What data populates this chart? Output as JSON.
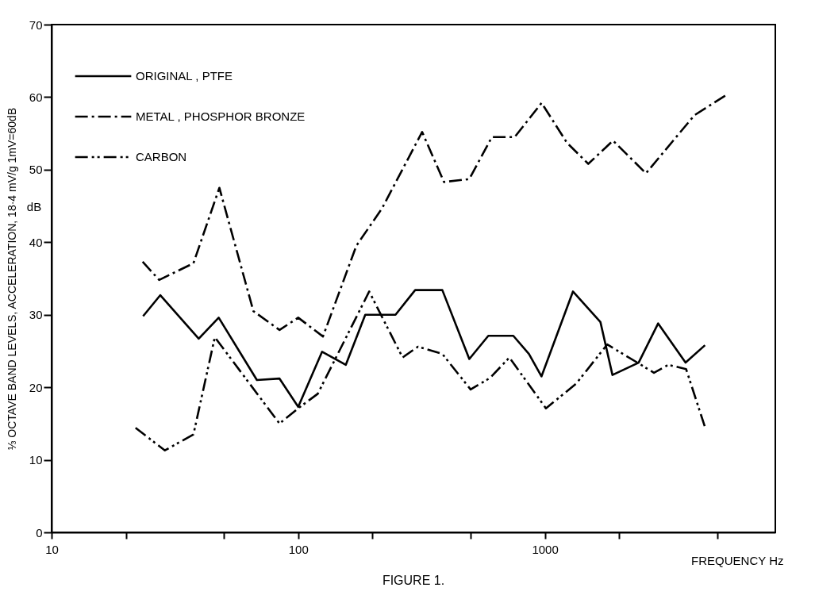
{
  "chart_data": {
    "type": "line",
    "title": "FIGURE 1.",
    "xlabel": "FREQUENCY Hz",
    "ylabel": "⅓ OCTAVE BAND LEVELS, ACCELERATION, 18·4 mV/g 1mV=60dB",
    "annotations": [
      "dB"
    ],
    "log": "x",
    "xlim": [
      10,
      8600
    ],
    "ylim": [
      0,
      70
    ],
    "xticks": [
      10,
      {
        "value": 20,
        "label": null
      },
      {
        "value": 50,
        "label": null
      },
      100,
      {
        "value": 200,
        "label": null
      },
      {
        "value": 500,
        "label": null
      },
      1000,
      {
        "value": 2000,
        "label": null
      },
      {
        "value": 5000,
        "label": null
      }
    ],
    "yticks": [
      0,
      10,
      20,
      30,
      40,
      50,
      60,
      70
    ],
    "grid": false,
    "legend": "top left",
    "marker": "none",
    "series": [
      {
        "name": "ORIGINAL , PTFE",
        "color": "#000000",
        "line_style": "solid",
        "x": [
          23.5,
          27.6,
          39.5,
          47.6,
          68,
          84,
          100,
          125,
          156,
          187,
          248,
          298,
          384,
          494,
          590,
          745,
          862,
          969,
          1300,
          1680,
          1880,
          2400,
          2880,
          3720,
          4460
        ],
        "values": [
          29.8,
          32.7,
          26.7,
          29.6,
          21.0,
          21.2,
          17.3,
          24.9,
          23.1,
          30.0,
          30.0,
          33.4,
          33.4,
          23.9,
          27.1,
          27.1,
          24.6,
          21.5,
          33.2,
          29.0,
          21.7,
          23.4,
          28.8,
          23.4,
          25.8
        ]
      },
      {
        "name": "METAL , PHOSPHOR  BRONZE",
        "color": "#000000",
        "line_style": "dashed",
        "x": [
          23.4,
          27.3,
          37.6,
          47.9,
          65.8,
          84,
          100,
          126,
          172,
          219,
          318,
          390,
          494,
          610,
          755,
          970,
          1230,
          1500,
          1890,
          2570,
          4040,
          5500
        ],
        "values": [
          37.3,
          34.8,
          37.1,
          47.5,
          30.5,
          27.9,
          29.6,
          27.0,
          39.5,
          44.7,
          55.2,
          48.3,
          48.7,
          54.5,
          54.5,
          59.2,
          53.7,
          50.8,
          54.0,
          49.5,
          57.5,
          60.4
        ]
      },
      {
        "name": "CARBON",
        "color": "#000000",
        "line_style": "dashed",
        "x": [
          21.9,
          28.8,
          37.6,
          45.9,
          84,
          100,
          120,
          194,
          265,
          306,
          384,
          500,
          600,
          718,
          1010,
          1340,
          1790,
          2400,
          2770,
          3170,
          3740,
          4460
        ],
        "values": [
          14.4,
          11.3,
          13.5,
          26.9,
          15.0,
          17.1,
          19.1,
          33.2,
          24.1,
          25.6,
          24.6,
          19.7,
          21.3,
          24.1,
          17.1,
          20.5,
          25.9,
          23.3,
          22.0,
          23.1,
          22.5,
          14.5
        ]
      }
    ]
  }
}
